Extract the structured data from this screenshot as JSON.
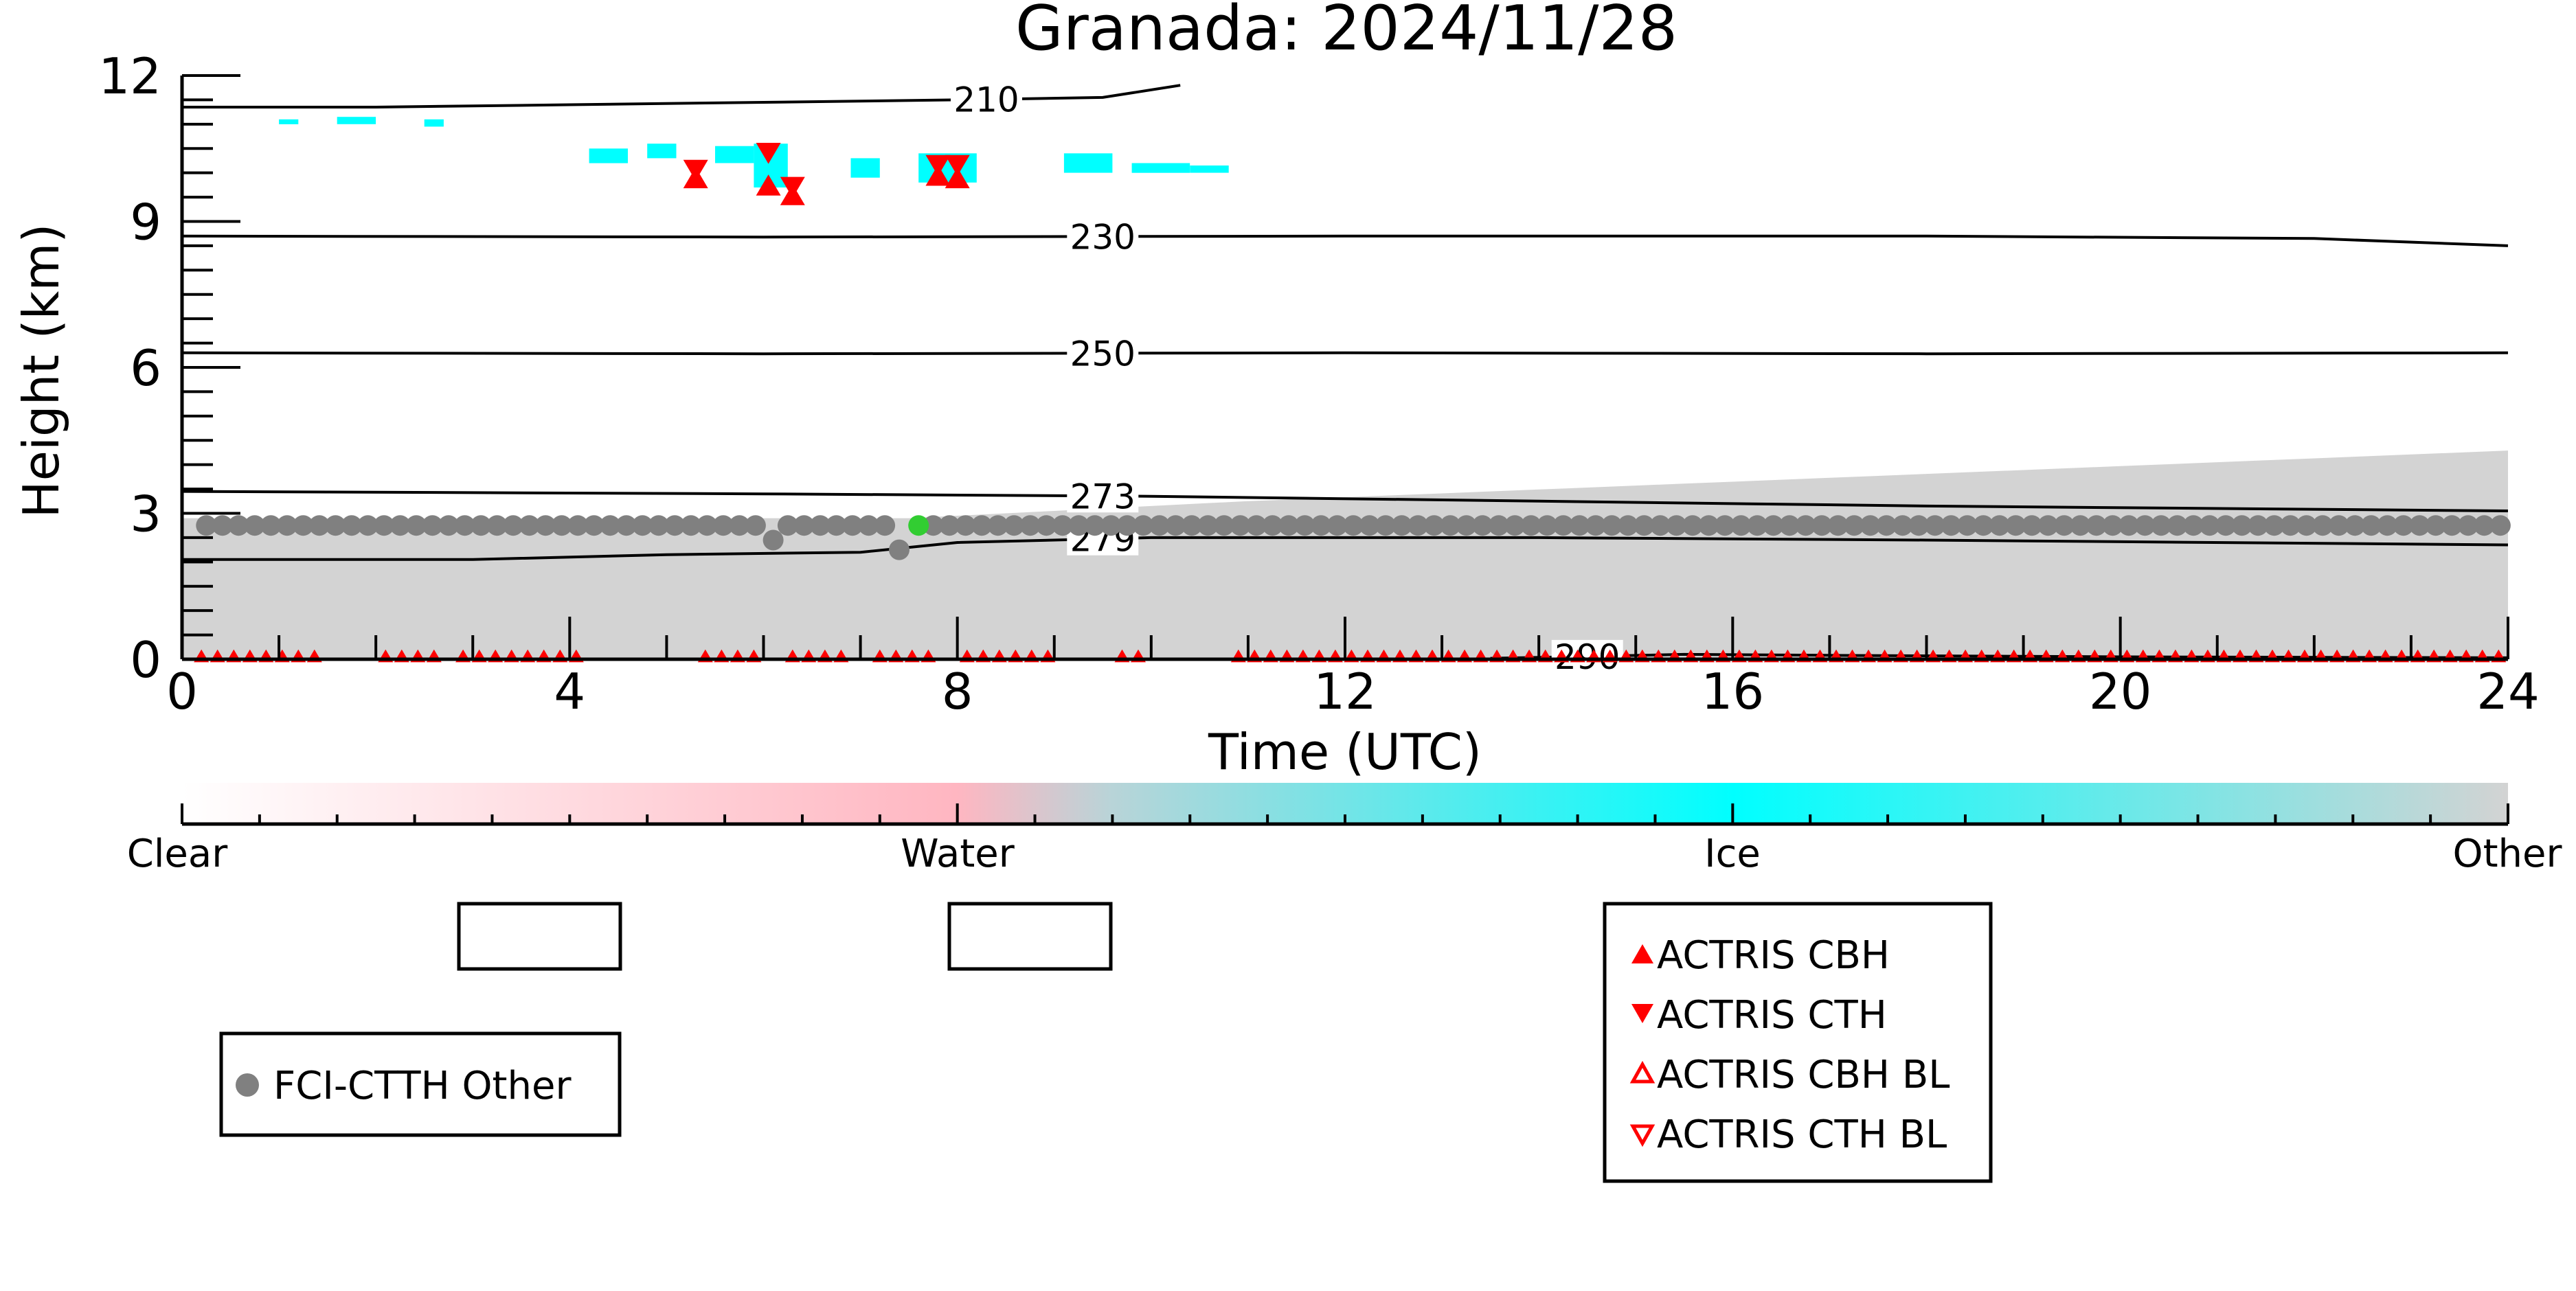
{
  "colors": {
    "clear": "#ffffff",
    "water": "#ffb6c1",
    "ice": "#00ffff",
    "other": "#d3d3d3",
    "actris": "#ff0000",
    "fci_other": "#808080",
    "fci_water": "#32cd32",
    "contour": "#000000"
  },
  "chart_data": {
    "type": "scatter",
    "title": "Granada: 2024/11/28",
    "xlabel": "Time (UTC)",
    "ylabel": "Height (km)",
    "xlim": [
      0,
      24
    ],
    "ylim": [
      0,
      12
    ],
    "xticks": [
      0,
      4,
      8,
      12,
      16,
      20,
      24
    ],
    "yticks": [
      0,
      3,
      6,
      9,
      12
    ],
    "xtick_labels": [
      "0",
      "4",
      "8",
      "12",
      "16",
      "20",
      "24"
    ],
    "ytick_labels": [
      "0",
      "3",
      "6",
      "9",
      "12"
    ],
    "grid": false,
    "temperature_contours": [
      {
        "label": "210",
        "label_x": 8.3,
        "points": [
          [
            0.0,
            11.35
          ],
          [
            2.0,
            11.35
          ],
          [
            4.0,
            11.4
          ],
          [
            6.0,
            11.45
          ],
          [
            8.0,
            11.5
          ],
          [
            9.5,
            11.55
          ],
          [
            10.3,
            11.8
          ]
        ]
      },
      {
        "label": "230",
        "label_x": 9.5,
        "points": [
          [
            0.0,
            8.7
          ],
          [
            6.0,
            8.68
          ],
          [
            12.0,
            8.7
          ],
          [
            18.0,
            8.7
          ],
          [
            22.0,
            8.65
          ],
          [
            24.0,
            8.5
          ]
        ]
      },
      {
        "label": "250",
        "label_x": 9.5,
        "points": [
          [
            0.0,
            6.3
          ],
          [
            6.0,
            6.28
          ],
          [
            12.0,
            6.3
          ],
          [
            18.0,
            6.28
          ],
          [
            24.0,
            6.3
          ]
        ]
      },
      {
        "label": "273",
        "label_x": 9.5,
        "points": [
          [
            0.0,
            3.45
          ],
          [
            6.0,
            3.4
          ],
          [
            10.0,
            3.35
          ],
          [
            14.0,
            3.25
          ],
          [
            18.0,
            3.15
          ],
          [
            24.0,
            3.05
          ]
        ]
      },
      {
        "label": "279",
        "label_x": 9.5,
        "points": [
          [
            0.0,
            2.05
          ],
          [
            3.0,
            2.05
          ],
          [
            5.0,
            2.15
          ],
          [
            7.0,
            2.2
          ],
          [
            8.0,
            2.4
          ],
          [
            10.0,
            2.5
          ],
          [
            14.0,
            2.5
          ],
          [
            18.0,
            2.45
          ],
          [
            24.0,
            2.35
          ]
        ]
      },
      {
        "label": "290",
        "label_x": 14.5,
        "points": [
          [
            13.5,
            0.02
          ],
          [
            14.3,
            0.05
          ],
          [
            15.5,
            0.1
          ],
          [
            17.0,
            0.08
          ],
          [
            20.0,
            0.05
          ],
          [
            24.0,
            0.03
          ]
        ]
      }
    ],
    "colorbar": {
      "categories": [
        "Clear",
        "Water",
        "Ice",
        "Other"
      ],
      "positions": [
        0,
        8,
        16,
        24
      ]
    },
    "legend_fci": {
      "entries": [
        "FCI-CTTH Other"
      ],
      "placement": "bottom-left"
    },
    "legend_actris": {
      "entries": [
        "ACTRIS CBH",
        "ACTRIS CTH",
        "ACTRIS CBH BL",
        "ACTRIS CTH BL"
      ],
      "placement": "bottom-center-right"
    },
    "fci_other_gaps": [
      [
        6.05,
        6.25
      ],
      [
        7.3,
        7.75
      ]
    ],
    "fci_other_extra": [
      [
        6.1,
        2.45
      ],
      [
        7.4,
        2.25
      ]
    ],
    "fci_water_points": [
      [
        7.6,
        2.75
      ]
    ],
    "fci_other_height": 2.75,
    "actris_ice_cth": [
      [
        5.3,
        10.05
      ],
      [
        6.05,
        10.4
      ],
      [
        6.3,
        9.7
      ],
      [
        7.8,
        10.15
      ],
      [
        8.0,
        10.15
      ]
    ],
    "actris_ice_cbh": [
      [
        5.3,
        9.9
      ],
      [
        6.05,
        9.75
      ],
      [
        6.3,
        9.55
      ],
      [
        7.8,
        9.95
      ],
      [
        8.0,
        9.9
      ]
    ],
    "actris_surface_segments": [
      [
        0.2,
        1.5
      ],
      [
        2.1,
        2.7
      ],
      [
        2.9,
        4.2
      ],
      [
        5.4,
        6.0
      ],
      [
        6.3,
        6.9
      ],
      [
        7.2,
        7.7
      ],
      [
        8.1,
        9.0
      ],
      [
        9.7,
        9.9
      ],
      [
        10.9,
        24.0
      ]
    ],
    "ice_patches": [
      [
        1.6,
        2.0,
        11.0,
        11.15
      ],
      [
        2.5,
        2.7,
        10.95,
        11.1
      ],
      [
        1.0,
        1.2,
        11.0,
        11.1
      ],
      [
        4.2,
        4.6,
        10.2,
        10.5
      ],
      [
        4.8,
        5.1,
        10.3,
        10.6
      ],
      [
        5.5,
        5.9,
        10.2,
        10.55
      ],
      [
        5.9,
        6.25,
        9.7,
        10.6
      ],
      [
        6.9,
        7.2,
        9.9,
        10.3
      ],
      [
        7.6,
        8.2,
        9.8,
        10.4
      ],
      [
        9.1,
        9.6,
        10.0,
        10.4
      ],
      [
        9.8,
        10.4,
        10.0,
        10.2
      ],
      [
        10.4,
        10.8,
        10.0,
        10.15
      ]
    ]
  }
}
